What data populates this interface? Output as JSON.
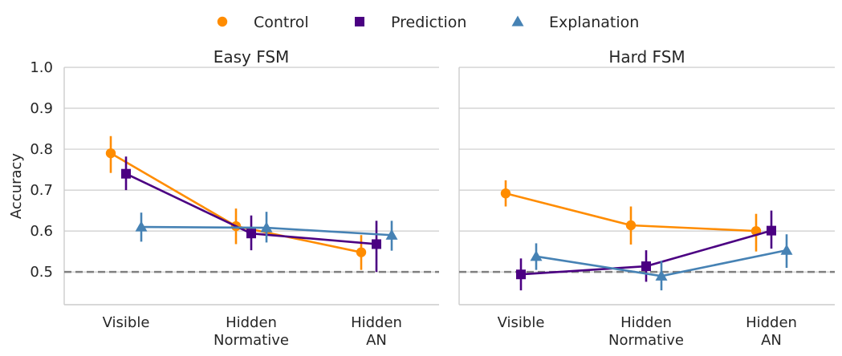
{
  "chart_data": {
    "type": "line",
    "ylabel": "Accuracy",
    "ylim": [
      0.42,
      1.0
    ],
    "yticks": [
      "0.5",
      "0.6",
      "0.7",
      "0.8",
      "0.9",
      "1.0"
    ],
    "reference_line": 0.5,
    "legend": [
      {
        "name": "Control",
        "color": "#ff8c00",
        "marker": "circle"
      },
      {
        "name": "Prediction",
        "color": "#4b0082",
        "marker": "square"
      },
      {
        "name": "Explanation",
        "color": "#4682b4",
        "marker": "triangle"
      }
    ],
    "categories": [
      [
        "Visible"
      ],
      [
        "Hidden",
        "Normative"
      ],
      [
        "Hidden",
        "AN"
      ]
    ],
    "panels": [
      {
        "title": "Easy FSM",
        "series": [
          {
            "name": "Control",
            "values": [
              0.79,
              0.612,
              0.548
            ],
            "ci_low": [
              0.742,
              0.568,
              0.505
            ],
            "ci_high": [
              0.832,
              0.655,
              0.59
            ]
          },
          {
            "name": "Prediction",
            "values": [
              0.74,
              0.594,
              0.568
            ],
            "ci_low": [
              0.7,
              0.553,
              0.5
            ],
            "ci_high": [
              0.782,
              0.638,
              0.625
            ]
          },
          {
            "name": "Explanation",
            "values": [
              0.61,
              0.608,
              0.59
            ],
            "ci_low": [
              0.574,
              0.572,
              0.552
            ],
            "ci_high": [
              0.645,
              0.647,
              0.625
            ]
          }
        ]
      },
      {
        "title": "Hard FSM",
        "series": [
          {
            "name": "Control",
            "values": [
              0.692,
              0.614,
              0.6
            ],
            "ci_low": [
              0.66,
              0.567,
              0.55
            ],
            "ci_high": [
              0.724,
              0.66,
              0.642
            ]
          },
          {
            "name": "Prediction",
            "values": [
              0.494,
              0.514,
              0.601
            ],
            "ci_low": [
              0.455,
              0.476,
              0.557
            ],
            "ci_high": [
              0.533,
              0.553,
              0.65
            ]
          },
          {
            "name": "Explanation",
            "values": [
              0.538,
              0.49,
              0.553
            ],
            "ci_low": [
              0.505,
              0.455,
              0.51
            ],
            "ci_high": [
              0.57,
              0.527,
              0.592
            ]
          }
        ]
      }
    ]
  }
}
